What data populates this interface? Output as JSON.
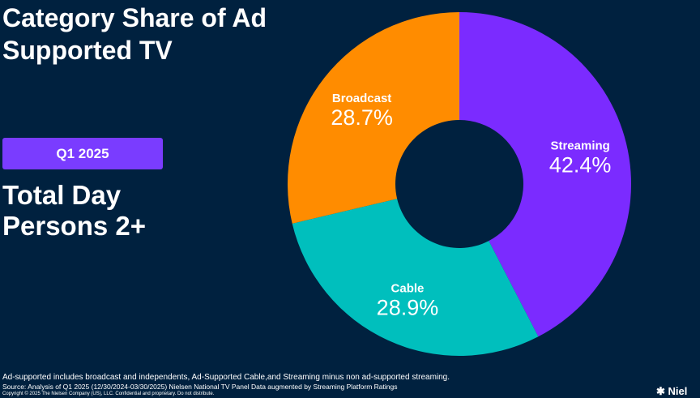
{
  "header": {
    "title": "Category Share of Ad Supported TV"
  },
  "badge": {
    "label": "Q1 2025"
  },
  "subtitle": {
    "line1": "Total Day",
    "line2": "Persons 2+"
  },
  "chart_data": {
    "type": "pie",
    "title": "Category Share of Ad Supported TV",
    "donut": true,
    "slices": [
      {
        "label": "Streaming",
        "value": 42.4,
        "display": "42.4%",
        "color": "#7b2bff"
      },
      {
        "label": "Cable",
        "value": 28.9,
        "display": "28.9%",
        "color": "#00bfbd"
      },
      {
        "label": "Broadcast",
        "value": 28.7,
        "display": "28.7%",
        "color": "#ff8c00"
      }
    ]
  },
  "footer": {
    "note": "Ad-supported includes broadcast and independents, Ad-Supported Cable,and Streaming minus non ad-supported streaming.",
    "source": "Source: Analysis of Q1 2025 (12/30/2024-03/30/2025)  Nielsen National TV Panel Data augmented by Streaming Platform Ratings",
    "copyright": "Copyright © 2025 The Nielsen Company (US), LLC. Confidential and proprietary. Do not distribute."
  },
  "logo": {
    "text": "Nielsen"
  }
}
